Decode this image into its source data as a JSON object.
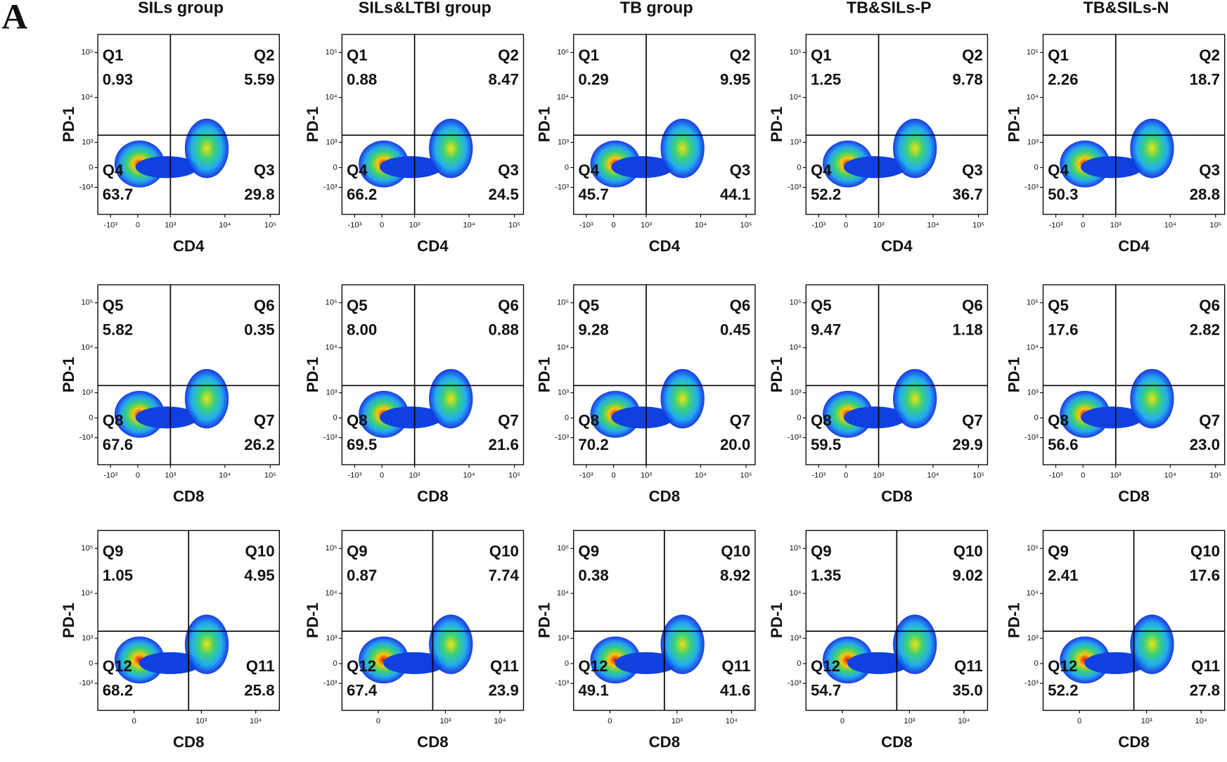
{
  "panel_label": "A",
  "columns": [
    "SILs group",
    "SILs&LTBI group",
    "TB group",
    "TB&SILs-P",
    "TB&SILs-N"
  ],
  "rows": [
    {
      "quadrants": [
        "Q1",
        "Q2",
        "Q3",
        "Q4"
      ],
      "x_label": "CD4",
      "y_label": "PD-1",
      "x_ticks": [
        "-10³",
        "0",
        "10³",
        "10⁴",
        "10⁵"
      ],
      "y_ticks": [
        "10⁵",
        "10⁴",
        "10³",
        "0",
        "-10³"
      ],
      "values": [
        [
          "0.93",
          "5.59",
          "29.8",
          "63.7"
        ],
        [
          "0.88",
          "8.47",
          "24.5",
          "66.2"
        ],
        [
          "0.29",
          "9.95",
          "44.1",
          "45.7"
        ],
        [
          "1.25",
          "9.78",
          "36.7",
          "52.2"
        ],
        [
          "2.26",
          "18.7",
          "28.8",
          "50.3"
        ]
      ]
    },
    {
      "quadrants": [
        "Q5",
        "Q6",
        "Q7",
        "Q8"
      ],
      "x_label": "CD8",
      "y_label": "PD-1",
      "x_ticks": [
        "-10³",
        "0",
        "10³",
        "10⁴",
        "10⁵"
      ],
      "y_ticks": [
        "10⁵",
        "10⁴",
        "10³",
        "0",
        "-10³"
      ],
      "values": [
        [
          "5.82",
          "0.35",
          "26.2",
          "67.6"
        ],
        [
          "8.00",
          "0.88",
          "21.6",
          "69.5"
        ],
        [
          "9.28",
          "0.45",
          "20.0",
          "70.2"
        ],
        [
          "9.47",
          "1.18",
          "29.9",
          "59.5"
        ],
        [
          "17.6",
          "2.82",
          "23.0",
          "56.6"
        ]
      ]
    },
    {
      "quadrants": [
        "Q9",
        "Q10",
        "Q11",
        "Q12"
      ],
      "x_label": "CD8",
      "y_label": "PD-1",
      "x_ticks": [
        "0",
        "10³",
        "10⁴"
      ],
      "y_ticks": [
        "10⁵",
        "10⁴",
        "10³",
        "0",
        "-10³"
      ],
      "values": [
        [
          "1.05",
          "4.95",
          "25.8",
          "68.2"
        ],
        [
          "0.87",
          "7.74",
          "23.9",
          "67.4"
        ],
        [
          "0.38",
          "8.92",
          "41.6",
          "49.1"
        ],
        [
          "1.35",
          "9.02",
          "35.0",
          "54.7"
        ],
        [
          "2.41",
          "17.6",
          "27.8",
          "52.2"
        ]
      ]
    }
  ]
}
